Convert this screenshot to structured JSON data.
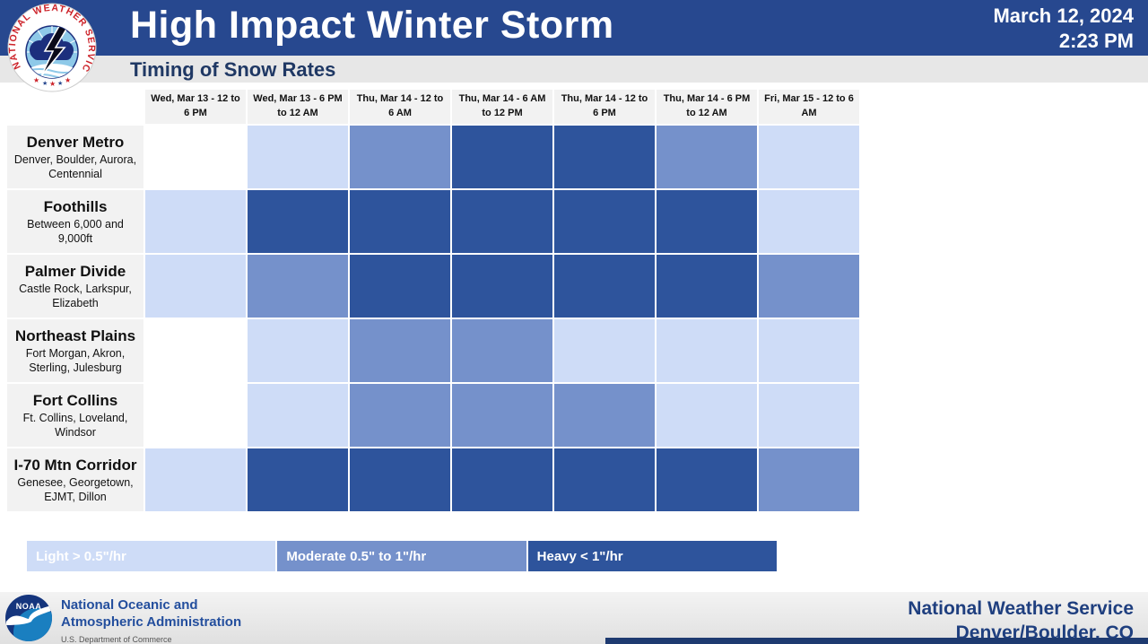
{
  "colors": {
    "header_blue": "#27488f",
    "subtitle_gray": "#e7e7e7",
    "subtitle_text": "#1f3864",
    "label_bg": "#f2f2f2",
    "none": "#ffffff",
    "light": "#cedcf7",
    "moderate": "#7591cb",
    "heavy": "#2e549c",
    "footer_navy": "#1f3f7f",
    "noaa_blue": "#234e9d"
  },
  "header": {
    "title": "High Impact Winter Storm",
    "subtitle": "Timing of Snow Rates",
    "date_line1": "March 12, 2024",
    "date_line2": "2:23 PM"
  },
  "logo": {
    "nws_ring_text": "NATIONAL WEATHER SERVICE",
    "star_glyph": "★",
    "noaa_text": "NOAA"
  },
  "chart_data": {
    "type": "heatmap",
    "title": "Timing of Snow Rates",
    "columns": [
      "Wed, Mar 13 - 12 to 6 PM",
      "Wed, Mar 13 - 6 PM to 12 AM",
      "Thu, Mar 14 - 12 to 6 AM",
      "Thu, Mar 14 - 6 AM to 12 PM",
      "Thu, Mar 14 - 12  to 6 PM",
      "Thu, Mar 14 - 6 PM to 12 AM",
      "Fri, Mar 15 - 12 to 6 AM"
    ],
    "rows": [
      {
        "name": "Denver Metro",
        "sub": "Denver, Boulder, Aurora, Centennial",
        "values": [
          "none",
          "light",
          "moderate",
          "heavy",
          "heavy",
          "moderate",
          "light"
        ]
      },
      {
        "name": "Foothills",
        "sub": "Between 6,000 and 9,000ft",
        "values": [
          "light",
          "heavy",
          "heavy",
          "heavy",
          "heavy",
          "heavy",
          "light"
        ]
      },
      {
        "name": "Palmer Divide",
        "sub": "Castle Rock, Larkspur, Elizabeth",
        "values": [
          "light",
          "moderate",
          "heavy",
          "heavy",
          "heavy",
          "heavy",
          "moderate"
        ]
      },
      {
        "name": "Northeast Plains",
        "sub": "Fort Morgan, Akron, Sterling, Julesburg",
        "values": [
          "none",
          "light",
          "moderate",
          "moderate",
          "light",
          "light",
          "light"
        ]
      },
      {
        "name": "Fort Collins",
        "sub": "Ft. Collins, Loveland, Windsor",
        "values": [
          "none",
          "light",
          "moderate",
          "moderate",
          "moderate",
          "light",
          "light"
        ]
      },
      {
        "name": "I-70 Mtn Corridor",
        "sub": "Genesee, Georgetown, EJMT, Dillon",
        "values": [
          "light",
          "heavy",
          "heavy",
          "heavy",
          "heavy",
          "heavy",
          "moderate"
        ]
      }
    ],
    "cell_colors": {
      "none": "#ffffff",
      "light": "#cedcf7",
      "moderate": "#7591cb",
      "heavy": "#2e549c"
    },
    "legend": [
      {
        "label": "Light > 0.5\"/hr",
        "color": "#cedcf7"
      },
      {
        "label": "Moderate 0.5\" to 1\"/hr",
        "color": "#7591cb"
      },
      {
        "label": "Heavy < 1\"/hr",
        "color": "#2e549c"
      }
    ],
    "legend_position": "bottom"
  },
  "footer": {
    "noaa_line1": "National Oceanic and",
    "noaa_line2": "Atmospheric Administration",
    "noaa_sub": "U.S. Department of Commerce",
    "nws_line1": "National Weather Service",
    "nws_line2": "Denver/Boulder, CO"
  }
}
